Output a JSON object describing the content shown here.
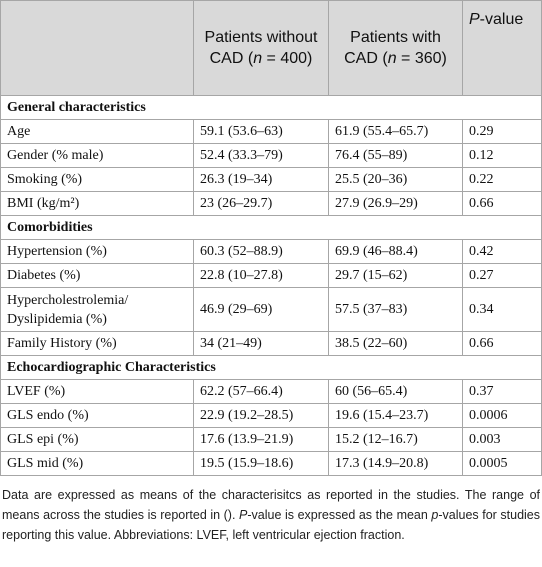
{
  "table": {
    "header": [
      [
        "Patients without CAD (",
        {
          "text": "n",
          "italic": true
        },
        " = 400)"
      ],
      [
        "Patients with CAD (",
        {
          "text": "n",
          "italic": true
        },
        " = 360)"
      ],
      [
        {
          "text": "P",
          "italic": true
        },
        "-value"
      ]
    ],
    "sections": [
      {
        "title": "General characteristics",
        "rows": [
          [
            "Age",
            "59.1 (53.6–63)",
            "61.9 (55.4–65.7)",
            "0.29"
          ],
          [
            "Gender (% male)",
            "52.4 (33.3–79)",
            "76.4 (55–89)",
            "0.12"
          ],
          [
            "Smoking (%)",
            "26.3 (19–34)",
            "25.5 (20–36)",
            "0.22"
          ],
          [
            "BMI (kg/m²)",
            "23 (26–29.7)",
            "27.9 (26.9–29)",
            "0.66"
          ]
        ]
      },
      {
        "title": "Comorbidities",
        "rows": [
          [
            "Hypertension (%)",
            "60.3 (52–88.9)",
            "69.9 (46–88.4)",
            "0.42"
          ],
          [
            "Diabetes (%)",
            "22.8 (10–27.8)",
            "29.7 (15–62)",
            "0.27"
          ],
          [
            "Hypercholestrolemia/ Dyslipidemia (%)",
            "46.9 (29–69)",
            "57.5 (37–83)",
            "0.34"
          ],
          [
            "Family History (%)",
            "34 (21–49)",
            "38.5 (22–60)",
            "0.66"
          ]
        ]
      },
      {
        "title": "Echocardiographic Characteristics",
        "rows": [
          [
            "LVEF (%)",
            "62.2 (57–66.4)",
            "60 (56–65.4)",
            "0.37"
          ],
          [
            "GLS endo (%)",
            "22.9 (19.2–28.5)",
            "19.6 (15.4–23.7)",
            "0.0006"
          ],
          [
            "GLS epi (%)",
            "17.6 (13.9–21.9)",
            "15.2 (12–16.7)",
            "0.003"
          ],
          [
            "GLS mid (%)",
            "19.5 (15.9–18.6)",
            "17.3 (14.9–20.8)",
            "0.0005"
          ]
        ]
      }
    ]
  },
  "footnote": [
    "Data are expressed as means of the characterisitcs as reported in the studies. The range of means across the studies is reported in (). ",
    {
      "text": "P",
      "italic": true
    },
    "-value is expressed as the mean ",
    {
      "text": "p",
      "italic": true
    },
    "-values for studies reporting this value. Abbreviations: LVEF, left ventricular ejection fraction."
  ]
}
